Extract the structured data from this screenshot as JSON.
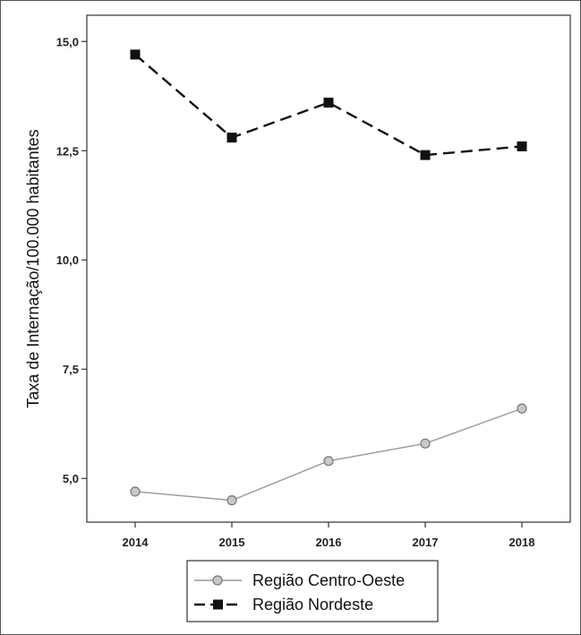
{
  "chart_data": {
    "type": "line",
    "title": "",
    "xlabel": "",
    "ylabel": "Taxa de Internação/100.000 habitantes",
    "categories": [
      "2014",
      "2015",
      "2016",
      "2017",
      "2018"
    ],
    "y_ticks": [
      "5,0",
      "7,5",
      "10,0",
      "12,5",
      "15,0"
    ],
    "ylim": [
      4.0,
      15.6
    ],
    "grid": false,
    "legend_placement": "bottom",
    "series": [
      {
        "name": "Região Centro-Oeste",
        "values": [
          4.7,
          4.5,
          5.4,
          5.8,
          6.6
        ],
        "color": "#9a9a9a",
        "marker": "circle",
        "line_style": "solid"
      },
      {
        "name": "Região Nordeste",
        "values": [
          14.7,
          12.8,
          13.6,
          12.4,
          12.6
        ],
        "color": "#111111",
        "marker": "square",
        "line_style": "dashed"
      }
    ]
  }
}
